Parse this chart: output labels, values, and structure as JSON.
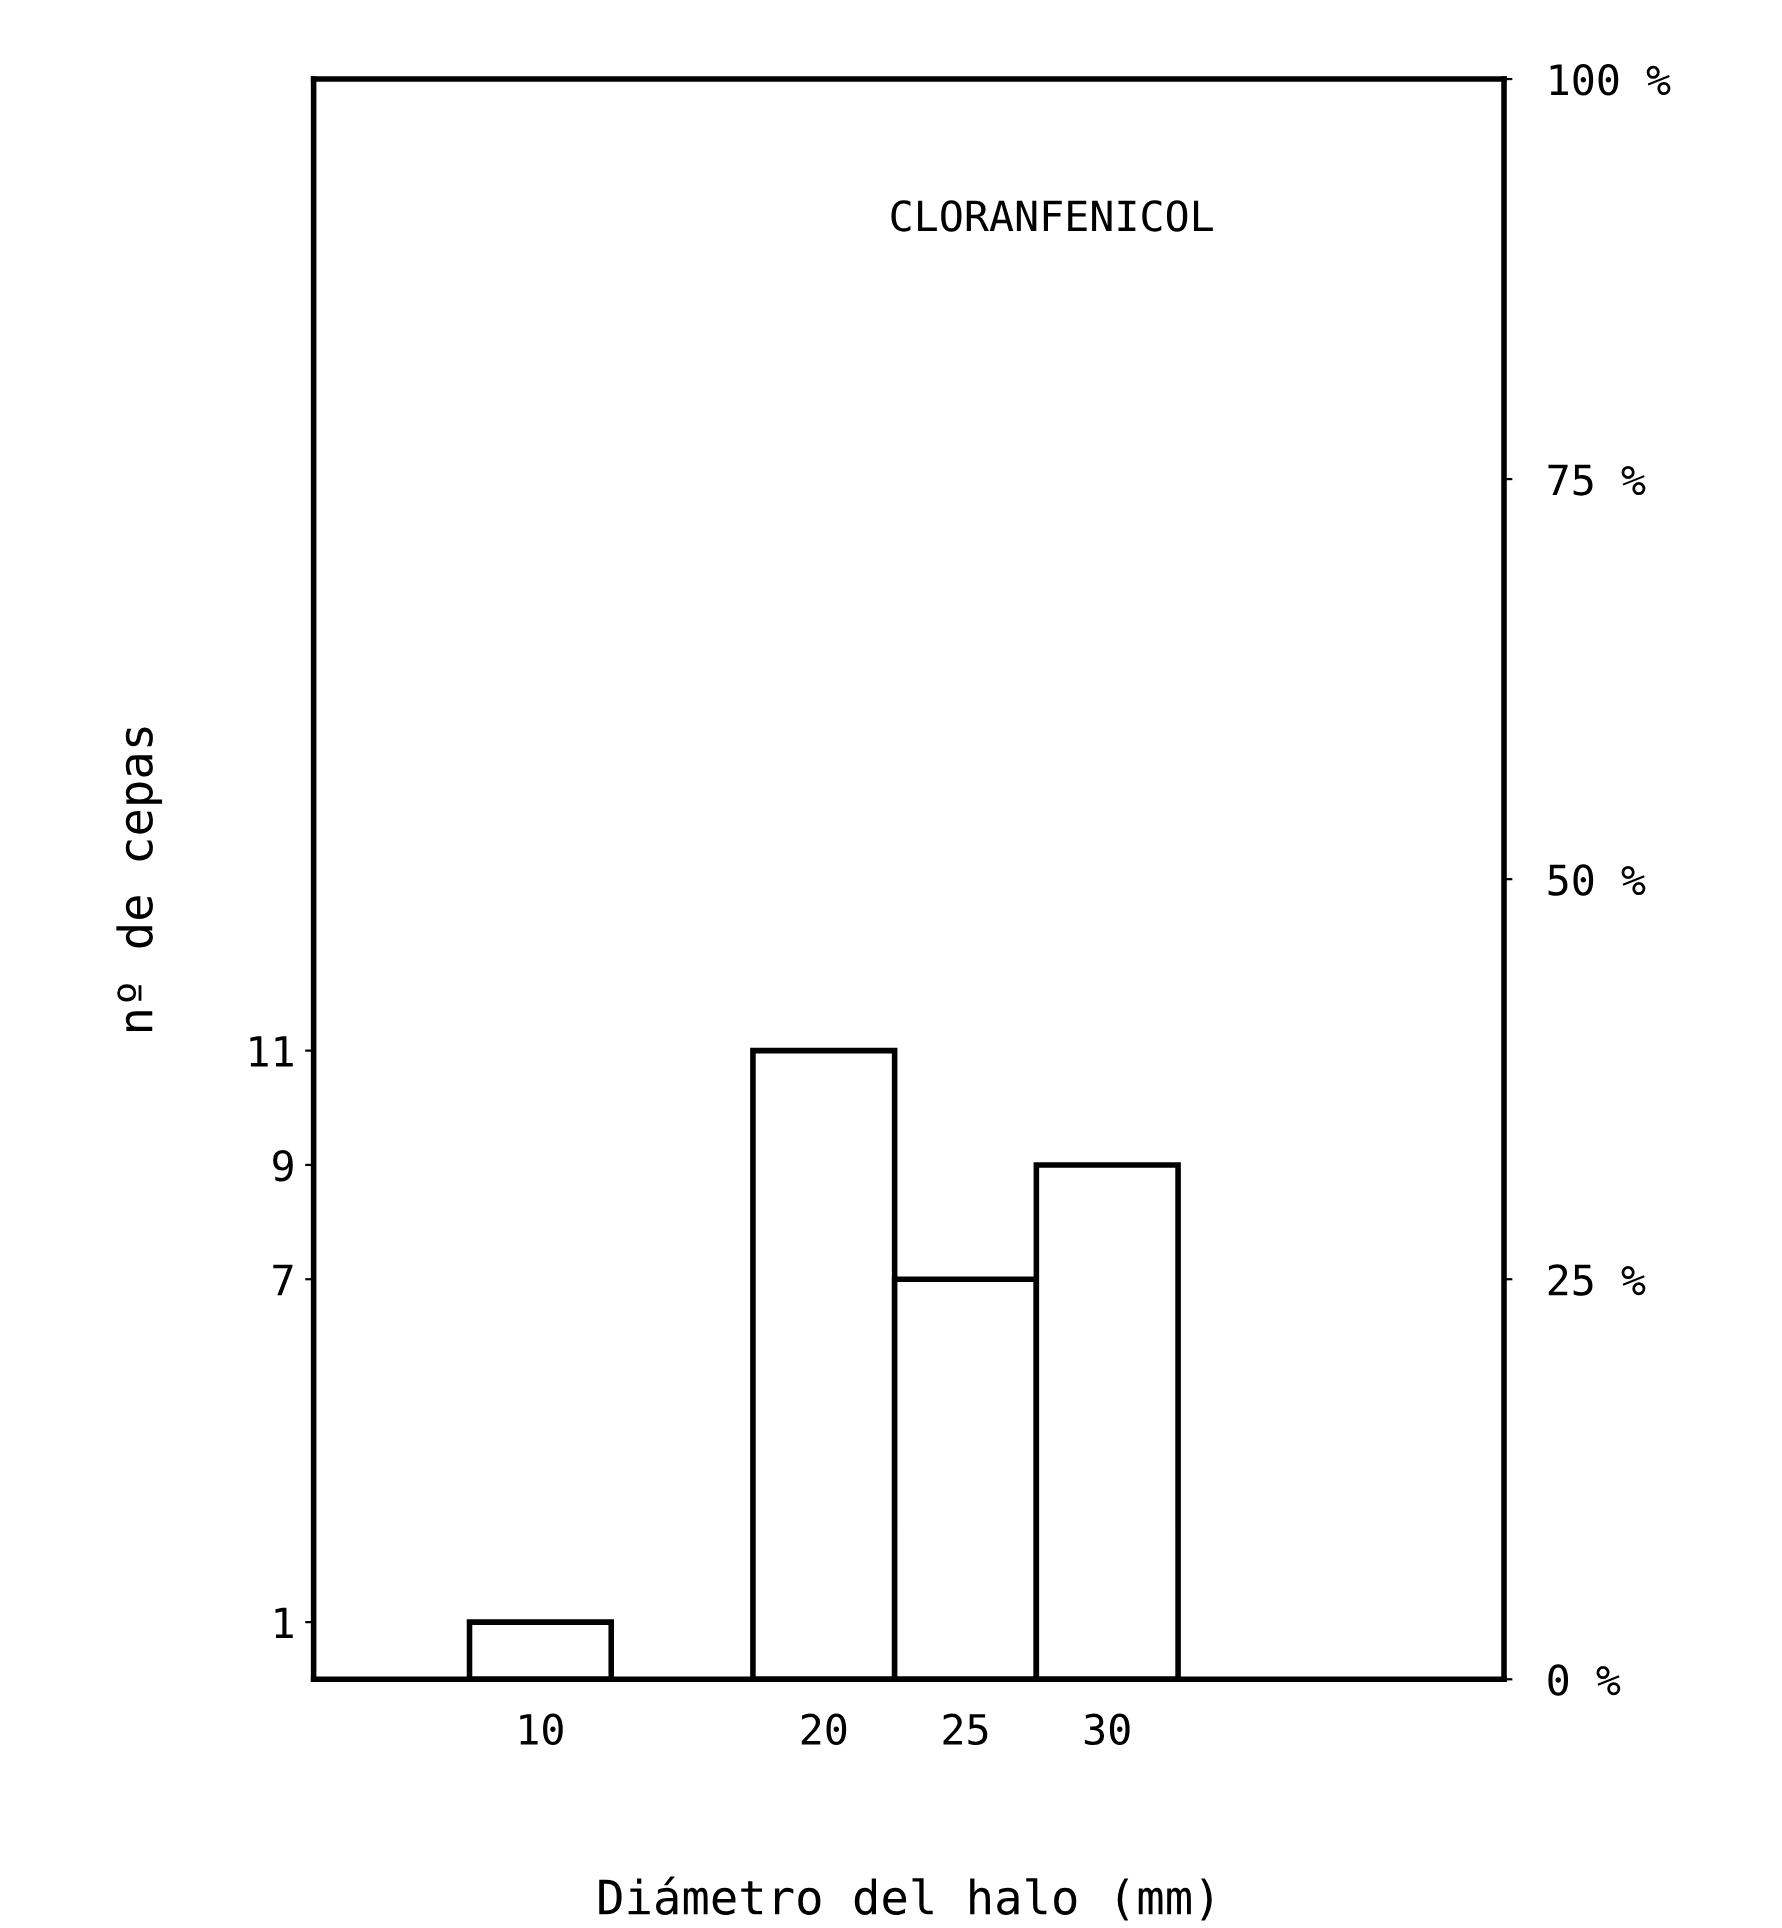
{
  "chart_data": {
    "type": "bar",
    "title": "CLORANFENICOL",
    "xlabel": "Diámetro del halo (mm)",
    "ylabel": "nº de cepas",
    "x": [
      10,
      20,
      25,
      30
    ],
    "values": [
      1,
      11,
      7,
      9
    ],
    "color": "#ffffff",
    "xlim": [
      2,
      44
    ],
    "xticks": [
      10,
      20,
      25,
      30
    ],
    "ylim": [
      0,
      28
    ],
    "yticks": [
      1,
      7,
      9,
      11
    ],
    "y2lim": [
      0,
      100
    ],
    "y2ticks": [
      {
        "value": 0,
        "label": "0 %"
      },
      {
        "value": 25,
        "label": "25 %"
      },
      {
        "value": 50,
        "label": "50 %"
      },
      {
        "value": 75,
        "label": "75 %"
      },
      {
        "value": 100,
        "label": "100 %"
      }
    ],
    "grid": false,
    "legend": false
  }
}
